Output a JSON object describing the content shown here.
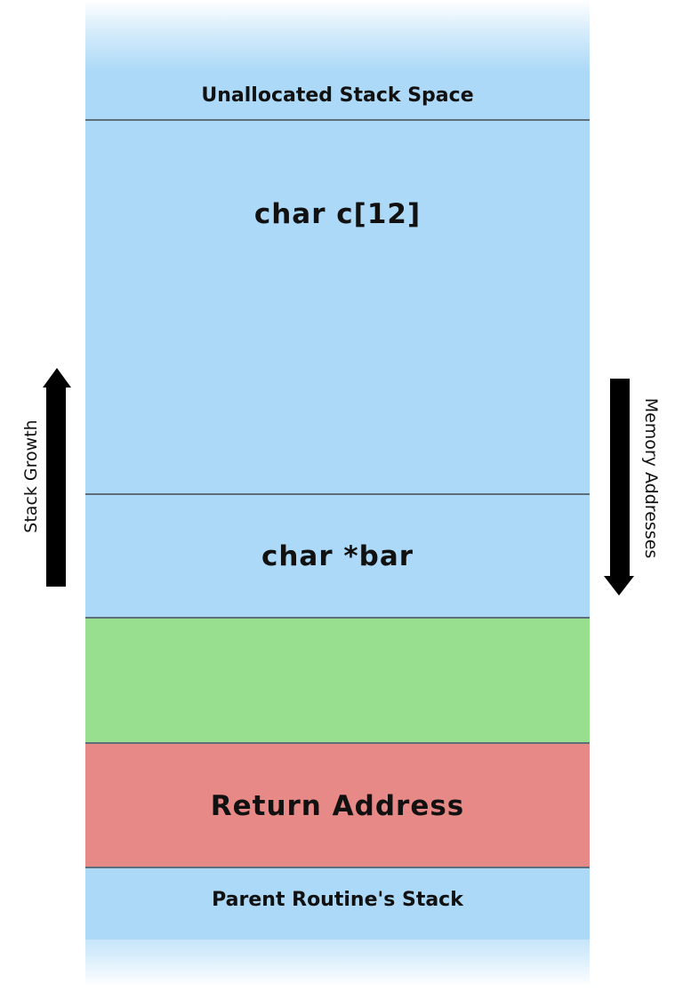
{
  "diagram": {
    "blocks": {
      "unallocated": "Unallocated Stack Space",
      "char_array": "char c[12]",
      "char_pointer": "char *bar",
      "saved_frame": "",
      "return_address": "Return Address",
      "parent_stack": "Parent Routine's Stack"
    },
    "left_arrow": {
      "label": "Stack Growth",
      "direction": "up"
    },
    "right_arrow": {
      "label": "Memory Addresses",
      "direction": "down"
    },
    "colors": {
      "stack_blue": "#acd9f7",
      "frame_green": "#98e08f",
      "return_red": "#e78987",
      "arrow": "#000000"
    }
  }
}
